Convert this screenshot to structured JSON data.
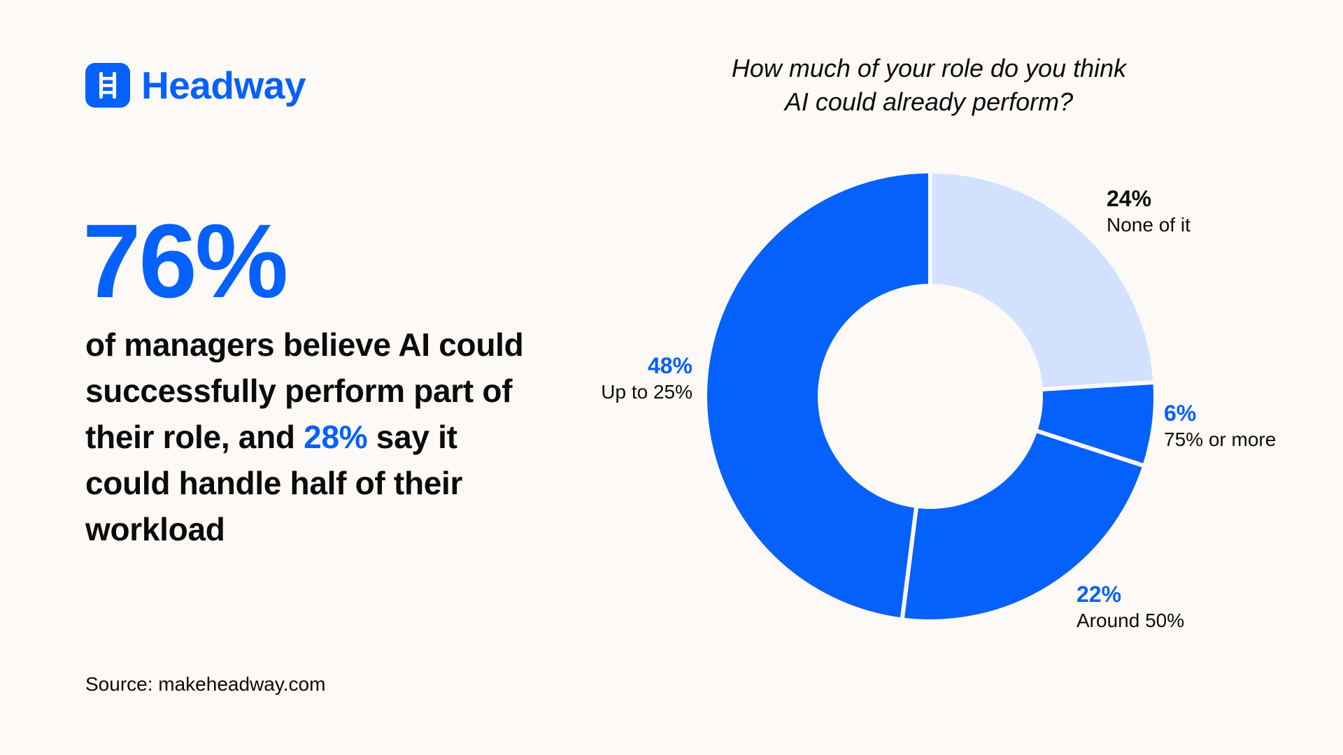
{
  "brand": {
    "name": "Headway",
    "color": "#0561fb",
    "icon": "ladder-icon"
  },
  "hero": {
    "number": "76%",
    "headline_parts": [
      "of managers believe AI could successfully perform part of their role, and ",
      "28%",
      " say it could handle half of their workload"
    ]
  },
  "source": "Source: makeheadway.com",
  "chart_data": {
    "type": "pie",
    "variant": "donut",
    "title_lines": [
      "How much of your role do you think",
      "AI could already perform?"
    ],
    "slices": [
      {
        "name": "None of it",
        "value": 24,
        "label": "24%",
        "color": "#d2e2fe"
      },
      {
        "name": "75% or more",
        "value": 6,
        "label": "6%",
        "color": "#0561fb"
      },
      {
        "name": "Around 50%",
        "value": 22,
        "label": "22%",
        "color": "#0561fb"
      },
      {
        "name": "Up to 25%",
        "value": 48,
        "label": "48%",
        "color": "#0561fb"
      }
    ],
    "start": "top",
    "direction": "clockwise",
    "legend": "none"
  }
}
